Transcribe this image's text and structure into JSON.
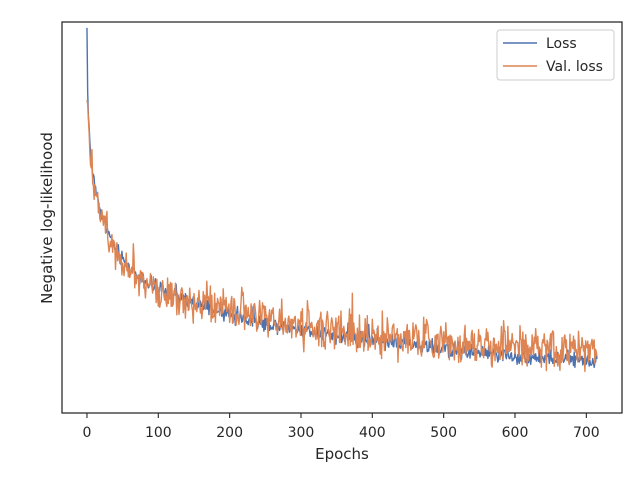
{
  "chart_data": {
    "type": "line",
    "title": "",
    "xlabel": "Epochs",
    "ylabel": "Negative log-likelihood",
    "xlim": [
      -35,
      750
    ],
    "ylim": [
      0.0,
      1.0
    ],
    "x_ticks": [
      0,
      100,
      200,
      300,
      400,
      500,
      600,
      700
    ],
    "y_ticks_shown": false,
    "grid": false,
    "legend": {
      "position": "upper right",
      "entries": [
        "Loss",
        "Val. loss"
      ]
    },
    "n_epochs": 716,
    "series": [
      {
        "name": "Loss",
        "color": "#4c72b0",
        "keypoints_x": [
          0,
          1,
          2,
          4,
          6,
          10,
          15,
          20,
          30,
          40,
          50,
          60,
          80,
          100,
          150,
          200,
          250,
          300,
          350,
          400,
          450,
          500,
          550,
          600,
          650,
          700,
          715
        ],
        "keypoints_y": [
          0.985,
          0.82,
          0.76,
          0.7,
          0.64,
          0.59,
          0.55,
          0.51,
          0.46,
          0.42,
          0.39,
          0.37,
          0.34,
          0.315,
          0.28,
          0.25,
          0.23,
          0.215,
          0.2,
          0.19,
          0.175,
          0.165,
          0.155,
          0.145,
          0.14,
          0.135,
          0.135
        ],
        "noise_amplitude": 0.01
      },
      {
        "name": "Val. loss",
        "color": "#dd8452",
        "keypoints_x": [
          0,
          1,
          2,
          4,
          6,
          10,
          15,
          20,
          30,
          40,
          50,
          60,
          80,
          100,
          150,
          200,
          250,
          300,
          350,
          400,
          450,
          500,
          550,
          600,
          650,
          700,
          715
        ],
        "keypoints_y": [
          0.8,
          0.79,
          0.75,
          0.69,
          0.64,
          0.59,
          0.55,
          0.51,
          0.46,
          0.42,
          0.39,
          0.37,
          0.34,
          0.315,
          0.285,
          0.26,
          0.24,
          0.225,
          0.21,
          0.2,
          0.19,
          0.18,
          0.175,
          0.17,
          0.165,
          0.16,
          0.16
        ],
        "noise_amplitude": 0.025
      }
    ]
  }
}
